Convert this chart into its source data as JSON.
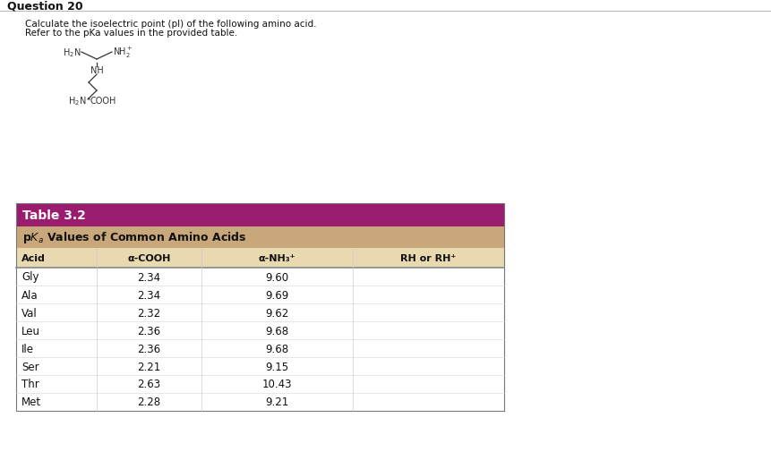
{
  "question_number": "Question 20",
  "instruction_line1": "Calculate the isoelectric point (pI) of the following amino acid.",
  "instruction_line2": "Refer to the pKa values in the provided table.",
  "table_title": "Table 3.2",
  "col_headers": [
    "Acid",
    "α-COOH",
    "α-NH₃⁺",
    "RH or RH⁺"
  ],
  "rows": [
    [
      "Gly",
      "2.34",
      "9.60",
      ""
    ],
    [
      "Ala",
      "2.34",
      "9.69",
      ""
    ],
    [
      "Val",
      "2.32",
      "9.62",
      ""
    ],
    [
      "Leu",
      "2.36",
      "9.68",
      ""
    ],
    [
      "Ile",
      "2.36",
      "9.68",
      ""
    ],
    [
      "Ser",
      "2.21",
      "9.15",
      ""
    ],
    [
      "Thr",
      "2.63",
      "10.43",
      ""
    ],
    [
      "Met",
      "2.28",
      "9.21",
      ""
    ]
  ],
  "color_header_bg": "#9B1B6E",
  "color_subheader_bg": "#C8A87A",
  "color_colheader_bg": "#E8D9B0",
  "color_row_bg": "#FFFFFF",
  "color_header_text": "#FFFFFF",
  "color_subheader_text": "#111111",
  "color_colheader_text": "#111111",
  "color_row_text": "#111111",
  "color_question_text": "#111111",
  "bg_color": "#FFFFFF"
}
